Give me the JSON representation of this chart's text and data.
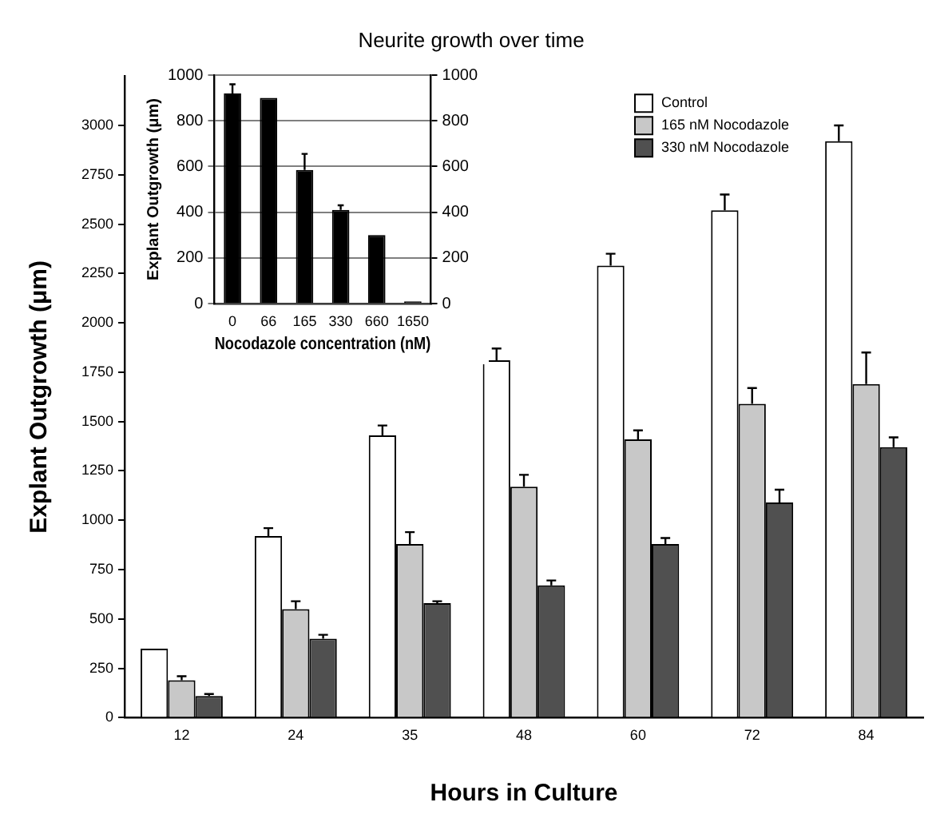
{
  "chart_data": [
    {
      "type": "bar",
      "title": "Neurite growth over time",
      "xlabel": "Hours in Culture",
      "ylabel": "Explant Outgrowth (μm)",
      "categories": [
        "12",
        "24",
        "35",
        "48",
        "60",
        "72",
        "84"
      ],
      "series": [
        {
          "name": "Control",
          "color": "#ffffff",
          "values": [
            350,
            920,
            1430,
            1810,
            2290,
            2570,
            2920
          ],
          "errors": [
            null,
            40,
            50,
            60,
            60,
            80,
            80
          ]
        },
        {
          "name": "165 nM Nocodazole",
          "color": "#c8c8c8",
          "values": [
            190,
            550,
            880,
            1170,
            1410,
            1590,
            1690
          ],
          "errors": [
            20,
            40,
            60,
            60,
            45,
            80,
            160
          ]
        },
        {
          "name": "330 nM Nocodazole",
          "color": "#505050",
          "values": [
            110,
            400,
            580,
            670,
            880,
            1090,
            1370
          ],
          "errors": [
            10,
            20,
            10,
            25,
            30,
            65,
            50
          ]
        }
      ],
      "ylim": [
        0,
        3250
      ],
      "yticks": [
        0,
        250,
        500,
        750,
        1000,
        1250,
        1500,
        1750,
        2000,
        2250,
        2500,
        2750,
        3000
      ],
      "grid": false,
      "legend": "top right"
    },
    {
      "type": "bar",
      "xlabel": "Nocodazole concentration (nM)",
      "ylabel": "Explant Outgrowth (μm)",
      "categories": [
        "0",
        "66",
        "165",
        "330",
        "660",
        "1650"
      ],
      "series": [
        {
          "color": "#000000",
          "values": [
            920,
            900,
            585,
            410,
            300,
            10
          ],
          "errors": [
            40,
            null,
            70,
            20,
            null,
            null
          ]
        }
      ],
      "ylim": [
        0,
        1000
      ],
      "yticks": [
        0,
        200,
        400,
        600,
        800,
        1000
      ],
      "y2lim": [
        0,
        1000
      ],
      "y2ticks": [
        0,
        200,
        400,
        600,
        800,
        1000
      ],
      "grid": "y",
      "legend": false
    }
  ]
}
